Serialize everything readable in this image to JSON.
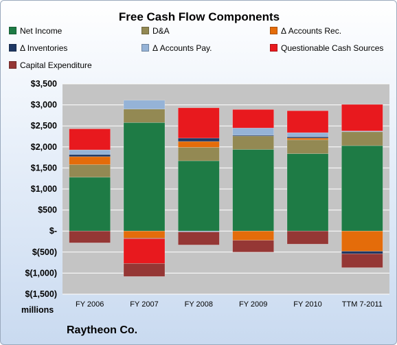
{
  "chart_data": {
    "type": "bar",
    "stacked": true,
    "title": "Free Cash Flow Components",
    "company": "Raytheon Co.",
    "units_label": "millions",
    "categories": [
      "FY 2006",
      "FY 2007",
      "FY 2008",
      "FY 2009",
      "FY 2010",
      "TTM 7-2011"
    ],
    "ylim": [
      -1500,
      3500
    ],
    "yticks": [
      -1500,
      -1000,
      -500,
      0,
      500,
      1000,
      1500,
      2000,
      2500,
      3000,
      3500
    ],
    "ytick_labels": [
      "$(1,500)",
      "$(1,000)",
      "$(500)",
      "$-",
      "$500",
      "$1,000",
      "$1,500",
      "$2,000",
      "$2,500",
      "$3,000",
      "$3,500"
    ],
    "grid": true,
    "legend_position": "top",
    "series": [
      {
        "name": "Net Income",
        "color": "#1e7b45",
        "values": [
          1280,
          2580,
          1670,
          1940,
          1840,
          2030
        ]
      },
      {
        "name": "D&A",
        "color": "#938953",
        "values": [
          300,
          320,
          320,
          320,
          330,
          330
        ]
      },
      {
        "name": "Δ Accounts Rec.",
        "color": "#e46c0a",
        "values": [
          190,
          -170,
          140,
          -220,
          40,
          -480
        ]
      },
      {
        "name": "Δ Inventories",
        "color": "#1f3864",
        "values": [
          50,
          -10,
          80,
          20,
          30,
          -60
        ]
      },
      {
        "name": "Δ Accounts Pay.",
        "color": "#95b3d7",
        "values": [
          110,
          210,
          -20,
          170,
          100,
          20
        ]
      },
      {
        "name": "Questionable Cash Sources",
        "color": "#e8191e",
        "values": [
          500,
          -590,
          720,
          440,
          520,
          630
        ]
      },
      {
        "name": "Capital Expenditure",
        "color": "#953735",
        "values": [
          -280,
          -310,
          -310,
          -280,
          -310,
          -330
        ]
      }
    ]
  }
}
